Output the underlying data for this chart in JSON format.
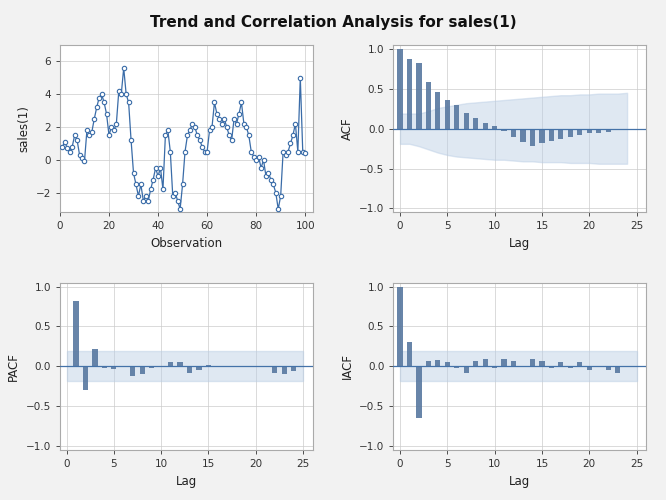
{
  "title": "Trend and Correlation Analysis for sales(1)",
  "title_fontsize": 11,
  "bg_color": "#f2f2f2",
  "panel_bg": "#ffffff",
  "line_color": "#3a6ca8",
  "bar_color": "#5878a0",
  "conf_band_color": "#b8cce4",
  "zero_line_color": "#4472a8",
  "grid_color": "#cccccc",
  "spine_color": "#aaaaaa",
  "time_series": [
    0.8,
    1.1,
    0.7,
    0.5,
    0.8,
    1.5,
    1.2,
    0.3,
    0.1,
    -0.1,
    1.8,
    1.5,
    1.7,
    2.5,
    3.2,
    3.8,
    4.0,
    3.5,
    2.8,
    1.5,
    2.0,
    1.8,
    2.2,
    4.2,
    4.0,
    5.6,
    4.0,
    3.5,
    1.2,
    -0.8,
    -1.5,
    -2.2,
    -1.5,
    -2.5,
    -2.2,
    -2.5,
    -1.8,
    -1.2,
    -0.5,
    -1.0,
    -0.5,
    -1.8,
    1.5,
    1.8,
    0.5,
    -2.2,
    -2.0,
    -2.5,
    -3.0,
    -1.5,
    0.5,
    1.5,
    1.8,
    2.2,
    2.0,
    1.5,
    1.2,
    0.8,
    0.5,
    0.5,
    1.8,
    2.0,
    3.5,
    2.8,
    2.5,
    2.2,
    2.5,
    2.0,
    1.5,
    1.2,
    2.5,
    2.2,
    2.8,
    3.5,
    2.2,
    2.0,
    1.5,
    0.5,
    0.2,
    0.0,
    0.2,
    -0.5,
    0.0,
    -1.0,
    -0.8,
    -1.2,
    -1.5,
    -2.0,
    -3.0,
    -2.2,
    0.5,
    0.3,
    0.5,
    1.0,
    1.5,
    2.2,
    0.5,
    5.0,
    0.5,
    0.4
  ],
  "acf_values": [
    1.0,
    0.88,
    0.82,
    0.58,
    0.46,
    0.36,
    0.3,
    0.2,
    0.13,
    0.07,
    0.03,
    -0.03,
    -0.1,
    -0.17,
    -0.22,
    -0.18,
    -0.15,
    -0.13,
    -0.1,
    -0.08,
    -0.06,
    -0.05,
    -0.04,
    -0.02,
    -0.01
  ],
  "pacf_values": [
    0.82,
    -0.3,
    0.22,
    -0.02,
    -0.03,
    0.01,
    -0.12,
    -0.1,
    -0.02,
    -0.01,
    0.05,
    0.06,
    -0.08,
    -0.05,
    0.02,
    -0.01,
    0.0,
    0.0,
    -0.01,
    -0.01,
    -0.01,
    -0.08,
    -0.1,
    -0.06
  ],
  "iacf_values": [
    1.0,
    0.3,
    -0.65,
    0.07,
    0.08,
    0.05,
    -0.02,
    -0.08,
    0.07,
    0.09,
    -0.02,
    0.09,
    0.07,
    -0.01,
    0.09,
    0.07,
    -0.02,
    0.06,
    -0.02,
    0.06,
    -0.04,
    -0.01,
    -0.04,
    -0.08
  ],
  "acf_conf_upper": [
    0.19,
    0.19,
    0.19,
    0.22,
    0.26,
    0.28,
    0.3,
    0.32,
    0.33,
    0.34,
    0.35,
    0.36,
    0.37,
    0.38,
    0.39,
    0.4,
    0.41,
    0.42,
    0.42,
    0.43,
    0.43,
    0.44,
    0.44,
    0.44,
    0.45
  ],
  "acf_conf_lower": [
    -0.19,
    -0.19,
    -0.22,
    -0.26,
    -0.3,
    -0.33,
    -0.35,
    -0.36,
    -0.37,
    -0.38,
    -0.39,
    -0.39,
    -0.4,
    -0.41,
    -0.41,
    -0.42,
    -0.42,
    -0.42,
    -0.43,
    -0.43,
    -0.43,
    -0.44,
    -0.44,
    -0.44,
    -0.44
  ],
  "pacf_conf_upper": 0.19,
  "pacf_conf_lower": -0.19,
  "iacf_conf_upper": 0.19,
  "iacf_conf_lower": -0.19,
  "xlabel_obs": "Observation",
  "ylabel_obs": "sales(1)",
  "ylabel_acf": "ACF",
  "ylabel_pacf": "PACF",
  "ylabel_iacf": "IACF",
  "xlabel_lag": "Lag"
}
